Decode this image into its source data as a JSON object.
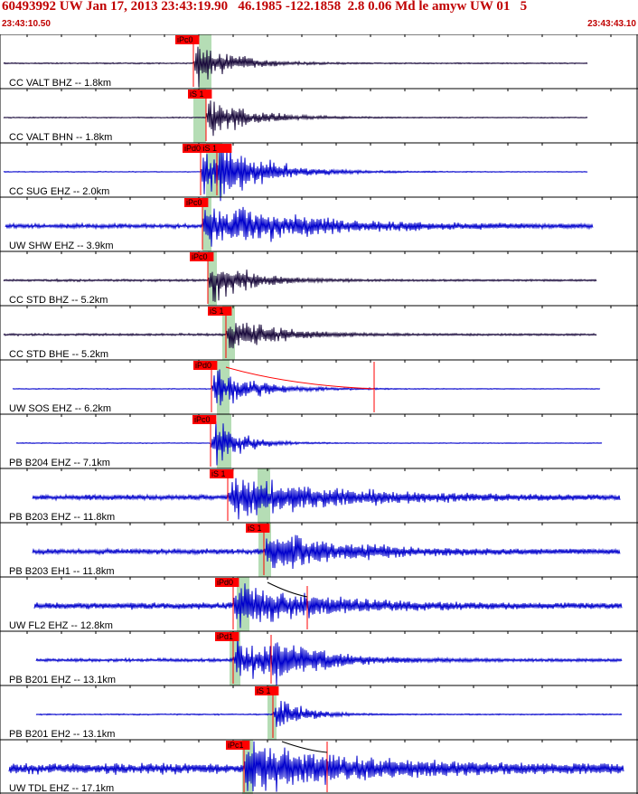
{
  "header": {
    "title": "60493992 UW Jan 17, 2013 23:43:19.90   46.1985 -122.1858  2.8 0.06 Md le amyw UW 01   5",
    "start_time": "23:43:10.50",
    "end_time": "23:43:43.10"
  },
  "colors": {
    "title": "#c00000",
    "trace_short_period": "#1a0a3c",
    "trace_broadband": "#0000cc",
    "pick": "#ff0000",
    "band": "#b5ddb5"
  },
  "chart_data": {
    "type": "line",
    "time_range": [
      "23:43:10.50",
      "23:43:43.10"
    ],
    "traces": [
      {
        "label": "CC VALT BHZ -- 1.8km",
        "color": "#1a0a3c",
        "picks": [
          {
            "label": "iPc0"
          }
        ]
      },
      {
        "label": "CC VALT BHN -- 1.8km",
        "color": "#1a0a3c",
        "picks": [
          {
            "label": "iS 1"
          }
        ]
      },
      {
        "label": "CC SUG EHZ -- 2.0km",
        "color": "#0000cc",
        "picks": [
          {
            "label": "iPd0 iS 1"
          }
        ]
      },
      {
        "label": "UW SHW EHZ -- 3.9km",
        "color": "#0000cc",
        "picks": [
          {
            "label": "iPc0"
          }
        ]
      },
      {
        "label": "CC STD BHZ -- 5.2km",
        "color": "#1a0a3c",
        "picks": [
          {
            "label": "iPc0"
          }
        ]
      },
      {
        "label": "CC STD BHE -- 5.2km",
        "color": "#1a0a3c",
        "picks": [
          {
            "label": "iS 1"
          }
        ]
      },
      {
        "label": "UW SOS EHZ -- 6.2km",
        "color": "#0000cc",
        "picks": [
          {
            "label": "iPd0"
          }
        ]
      },
      {
        "label": "PB B204 EHZ -- 7.1km",
        "color": "#0000cc",
        "picks": [
          {
            "label": "iPc0"
          }
        ]
      },
      {
        "label": "PB B203 EHZ -- 11.8km",
        "color": "#0000cc",
        "picks": [
          {
            "label": "iS 1"
          }
        ]
      },
      {
        "label": "PB B203 EH1 -- 11.8km",
        "color": "#0000cc",
        "picks": [
          {
            "label": "iS 1"
          }
        ]
      },
      {
        "label": "UW FL2 EHZ -- 12.8km",
        "color": "#0000cc",
        "picks": [
          {
            "label": "iPd0"
          }
        ]
      },
      {
        "label": "PB B201 EHZ -- 13.1km",
        "color": "#0000cc",
        "picks": [
          {
            "label": "iPd1"
          }
        ]
      },
      {
        "label": "PB B201 EH2 -- 13.1km",
        "color": "#0000cc",
        "picks": [
          {
            "label": "iS 1"
          }
        ]
      },
      {
        "label": "UW TDL EHZ -- 17.1km",
        "color": "#0000cc",
        "picks": [
          {
            "label": "iPc1"
          }
        ]
      }
    ]
  }
}
